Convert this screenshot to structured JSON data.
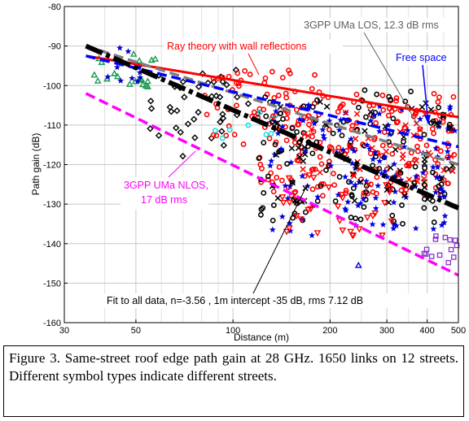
{
  "chart_data": {
    "type": "scatter",
    "title": "",
    "xlabel": "Distance (m)",
    "ylabel": "Path gain (dB)",
    "xscale": "log",
    "xlim": [
      30,
      500
    ],
    "ylim": [
      -160,
      -80
    ],
    "xticks": [
      30,
      50,
      100,
      200,
      300,
      400,
      500
    ],
    "yticks": [
      -160,
      -150,
      -140,
      -130,
      -120,
      -110,
      -100,
      -90,
      -80
    ],
    "grid": true,
    "annotations": [
      {
        "text": "Ray theory with wall reflections",
        "color": "#ff0000"
      },
      {
        "text": "3GPP UMa LOS, 12.3 dB rms",
        "color": "#606060"
      },
      {
        "text": "Free space",
        "color": "#0000ff"
      },
      {
        "text": "3GPP UMa NLOS,",
        "color": "#ff00ff"
      },
      {
        "text": "17 dB rms",
        "color": "#ff00ff"
      },
      {
        "text": "Fit to all data, n=-3.56 , 1m intercept -35 dB, rms 7.12 dB",
        "color": "#000000"
      }
    ],
    "lines": [
      {
        "label": "Ray theory with wall reflections",
        "color": "#ff0000",
        "style": "solid",
        "x": [
          35,
          500
        ],
        "y": [
          -92.5,
          -108
        ]
      },
      {
        "label": "3GPP UMa LOS",
        "color": "#7f7f7f",
        "style": "dashed",
        "x": [
          35,
          500
        ],
        "y": [
          -90,
          -120
        ]
      },
      {
        "label": "Free space",
        "color": "#0000ff",
        "style": "dashed",
        "x": [
          35,
          500
        ],
        "y": [
          -92.5,
          -115.5
        ]
      },
      {
        "label": "3GPP UMa NLOS",
        "color": "#ff00ff",
        "style": "dashed",
        "x": [
          35,
          500
        ],
        "y": [
          -102,
          -148
        ]
      },
      {
        "label": "Fit to all data",
        "color": "#000000",
        "style": "dashdot",
        "x": [
          35,
          500
        ],
        "y": [
          -90,
          -131
        ]
      }
    ],
    "clusters": [
      {
        "xmin": 35,
        "xmax": 60,
        "ymin": -102,
        "ymax": -92,
        "color": "#1a9a50",
        "marker": "triangle",
        "count": 22
      },
      {
        "xmin": 36,
        "xmax": 60,
        "ymin": -99,
        "ymax": -90,
        "color": "#0000cc",
        "marker": "star",
        "count": 10
      },
      {
        "xmin": 55,
        "xmax": 120,
        "ymin": -118,
        "ymax": -96,
        "color": "#000000",
        "marker": "diamond",
        "count": 40
      },
      {
        "xmin": 80,
        "xmax": 190,
        "ymin": -115,
        "ymax": -96,
        "color": "#ff0000",
        "marker": "circle",
        "count": 55
      },
      {
        "xmin": 85,
        "xmax": 150,
        "ymin": -114,
        "ymax": -106,
        "color": "#22dddd",
        "marker": "circle",
        "count": 9
      },
      {
        "xmin": 120,
        "xmax": 490,
        "ymin": -128,
        "ymax": -102,
        "color": "#ff0000",
        "marker": "circle",
        "count": 190
      },
      {
        "xmin": 120,
        "xmax": 490,
        "ymin": -135,
        "ymax": -100,
        "color": "#000000",
        "marker": "circle",
        "count": 120
      },
      {
        "xmin": 130,
        "xmax": 490,
        "ymin": -138,
        "ymax": -104,
        "color": "#0000dd",
        "marker": "star",
        "count": 120
      },
      {
        "xmin": 140,
        "xmax": 320,
        "ymin": -138,
        "ymax": -122,
        "color": "#ff0000",
        "marker": "triangle-down",
        "count": 35
      },
      {
        "xmin": 130,
        "xmax": 490,
        "ymin": -130,
        "ymax": -104,
        "color": "#000000",
        "marker": "x",
        "count": 60
      },
      {
        "xmin": 150,
        "xmax": 480,
        "ymin": -125,
        "ymax": -105,
        "color": "#ff0000",
        "marker": "x",
        "count": 40
      },
      {
        "xmin": 390,
        "xmax": 495,
        "ymin": -145,
        "ymax": -137,
        "color": "#8833cc",
        "marker": "square",
        "count": 14
      }
    ],
    "points": [
      {
        "x": 245,
        "y": -145.5,
        "color": "#0000dd",
        "marker": "triangle"
      }
    ]
  },
  "caption": "Figure 3. Same-street roof edge path gain at 28 GHz. 1650 links on 12 streets. Different symbol types indicate different streets."
}
